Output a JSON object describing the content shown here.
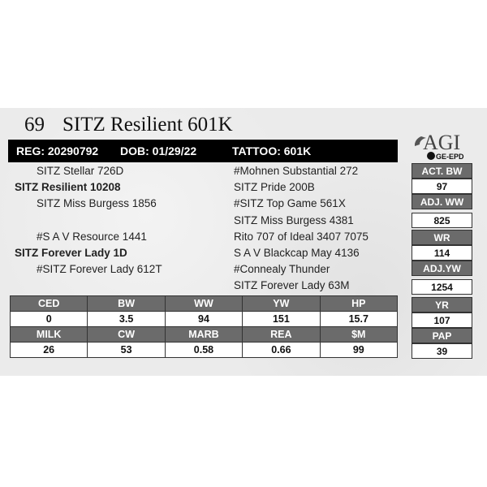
{
  "lot": "69",
  "name": "SITZ Resilient 601K",
  "reg": "REG: 20290792",
  "dob": "DOB: 01/29/22",
  "tattoo": "TATTOO: 601K",
  "logo": {
    "text": "AGI",
    "sub": "GE-EPD"
  },
  "pedigree": {
    "left": [
      "SITZ Stellar 726D",
      "SITZ Resilient 10208",
      "SITZ Miss Burgess 1856",
      "#S A V Resource 1441",
      "SITZ Forever Lady 1D",
      "#SITZ Forever Lady 612T"
    ],
    "right": [
      "#Mohnen Substantial 272",
      "SITZ Pride 200B",
      "#SITZ Top Game 561X",
      "SITZ Miss Burgess 4381",
      "Rito 707 of Ideal 3407 7075",
      "S A V Blackcap May 4136",
      "#Connealy Thunder",
      "SITZ Forever Lady 63M"
    ]
  },
  "side": [
    {
      "label": "ACT. BW",
      "value": "97"
    },
    {
      "label": "ADJ. WW",
      "value": "825"
    },
    {
      "label": "WR",
      "value": "114"
    },
    {
      "label": "ADJ.YW",
      "value": "1254"
    },
    {
      "label": "YR",
      "value": "107"
    },
    {
      "label": "PAP",
      "value": "39"
    }
  ],
  "epd": {
    "row1": {
      "headers": [
        "CED",
        "BW",
        "WW",
        "YW",
        "HP"
      ],
      "values": [
        "0",
        "3.5",
        "94",
        "151",
        "15.7"
      ]
    },
    "row2": {
      "headers": [
        "MILK",
        "CW",
        "MARB",
        "REA",
        "$M"
      ],
      "values": [
        "26",
        "53",
        "0.58",
        "0.66",
        "99"
      ]
    }
  }
}
